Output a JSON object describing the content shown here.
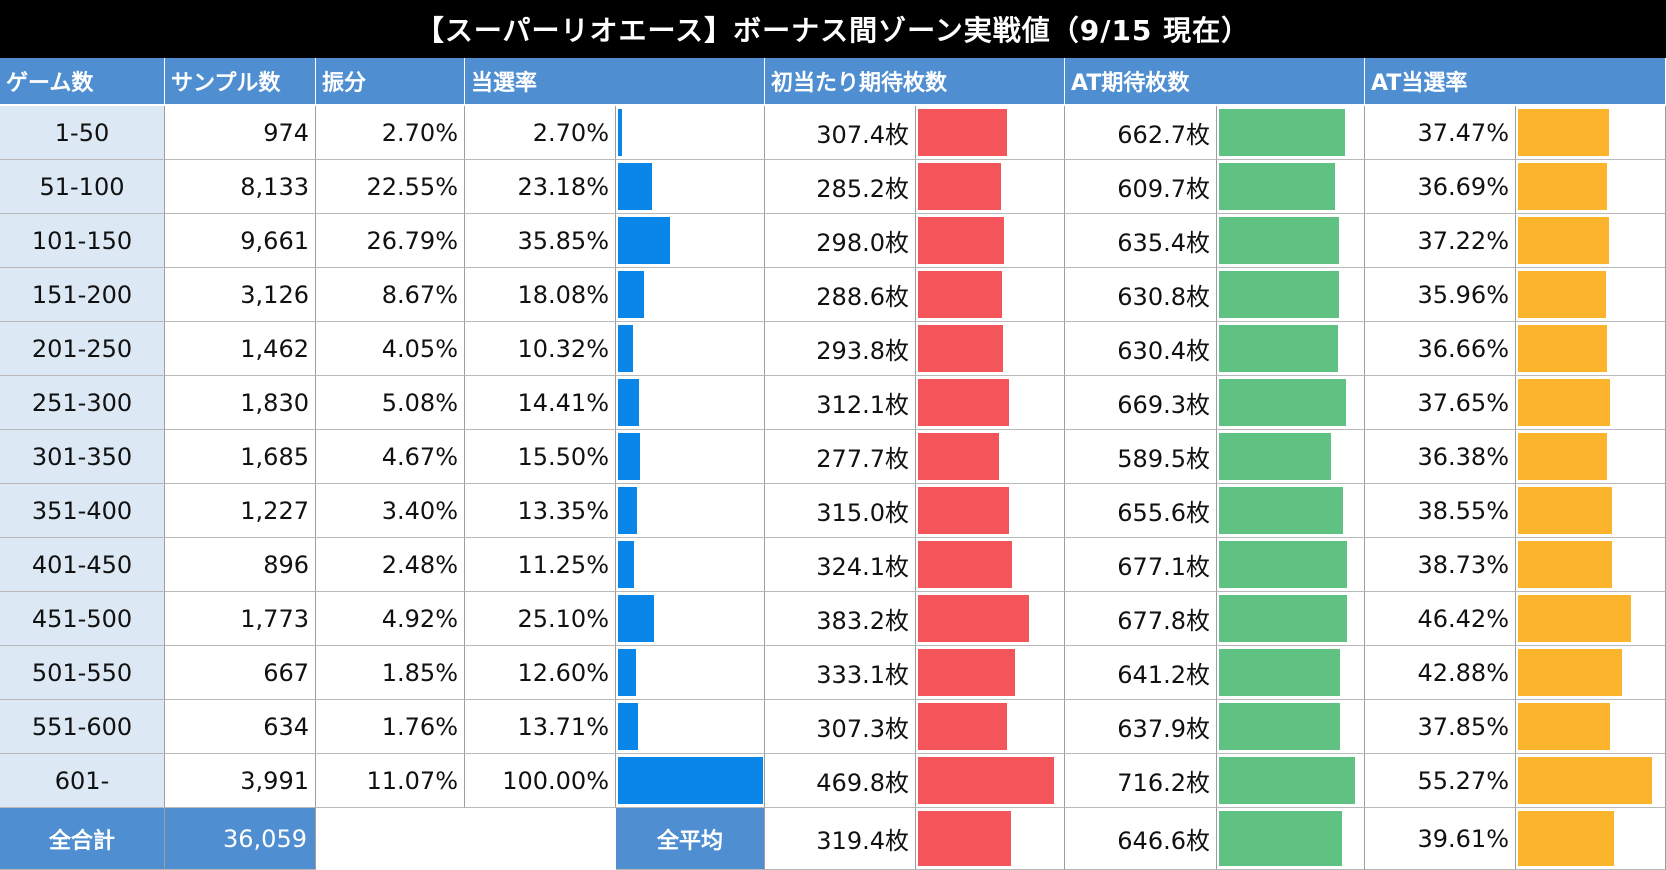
{
  "title": "【スーパーリオエース】ボーナス間ゾーン実戦値（9/15 現在）",
  "chart_data": {
    "type": "table",
    "headers": {
      "zone": "ゲーム数",
      "samples": "サンプル数",
      "share": "振分",
      "rate": "当選率",
      "first_hit": "初当たり期待枚数",
      "at_expect": "AT期待枚数",
      "at_rate": "AT当選率"
    },
    "rows": [
      {
        "zone": "1-50",
        "samples": "974",
        "share": "2.70%",
        "rate": "2.70%",
        "rate_value": 2.7,
        "first_hit": "307.4枚",
        "first_hit_value": 307.4,
        "at_expect": "662.7枚",
        "at_expect_value": 662.7,
        "at_rate": "37.47%",
        "at_rate_value": 37.47
      },
      {
        "zone": "51-100",
        "samples": "8,133",
        "share": "22.55%",
        "rate": "23.18%",
        "rate_value": 23.18,
        "first_hit": "285.2枚",
        "first_hit_value": 285.2,
        "at_expect": "609.7枚",
        "at_expect_value": 609.7,
        "at_rate": "36.69%",
        "at_rate_value": 36.69
      },
      {
        "zone": "101-150",
        "samples": "9,661",
        "share": "26.79%",
        "rate": "35.85%",
        "rate_value": 35.85,
        "first_hit": "298.0枚",
        "first_hit_value": 298.0,
        "at_expect": "635.4枚",
        "at_expect_value": 635.4,
        "at_rate": "37.22%",
        "at_rate_value": 37.22
      },
      {
        "zone": "151-200",
        "samples": "3,126",
        "share": "8.67%",
        "rate": "18.08%",
        "rate_value": 18.08,
        "first_hit": "288.6枚",
        "first_hit_value": 288.6,
        "at_expect": "630.8枚",
        "at_expect_value": 630.8,
        "at_rate": "35.96%",
        "at_rate_value": 35.96
      },
      {
        "zone": "201-250",
        "samples": "1,462",
        "share": "4.05%",
        "rate": "10.32%",
        "rate_value": 10.32,
        "first_hit": "293.8枚",
        "first_hit_value": 293.8,
        "at_expect": "630.4枚",
        "at_expect_value": 630.4,
        "at_rate": "36.66%",
        "at_rate_value": 36.66
      },
      {
        "zone": "251-300",
        "samples": "1,830",
        "share": "5.08%",
        "rate": "14.41%",
        "rate_value": 14.41,
        "first_hit": "312.1枚",
        "first_hit_value": 312.1,
        "at_expect": "669.3枚",
        "at_expect_value": 669.3,
        "at_rate": "37.65%",
        "at_rate_value": 37.65
      },
      {
        "zone": "301-350",
        "samples": "1,685",
        "share": "4.67%",
        "rate": "15.50%",
        "rate_value": 15.5,
        "first_hit": "277.7枚",
        "first_hit_value": 277.7,
        "at_expect": "589.5枚",
        "at_expect_value": 589.5,
        "at_rate": "36.38%",
        "at_rate_value": 36.38
      },
      {
        "zone": "351-400",
        "samples": "1,227",
        "share": "3.40%",
        "rate": "13.35%",
        "rate_value": 13.35,
        "first_hit": "315.0枚",
        "first_hit_value": 315.0,
        "at_expect": "655.6枚",
        "at_expect_value": 655.6,
        "at_rate": "38.55%",
        "at_rate_value": 38.55
      },
      {
        "zone": "401-450",
        "samples": "896",
        "share": "2.48%",
        "rate": "11.25%",
        "rate_value": 11.25,
        "first_hit": "324.1枚",
        "first_hit_value": 324.1,
        "at_expect": "677.1枚",
        "at_expect_value": 677.1,
        "at_rate": "38.73%",
        "at_rate_value": 38.73
      },
      {
        "zone": "451-500",
        "samples": "1,773",
        "share": "4.92%",
        "rate": "25.10%",
        "rate_value": 25.1,
        "first_hit": "383.2枚",
        "first_hit_value": 383.2,
        "at_expect": "677.8枚",
        "at_expect_value": 677.8,
        "at_rate": "46.42%",
        "at_rate_value": 46.42
      },
      {
        "zone": "501-550",
        "samples": "667",
        "share": "1.85%",
        "rate": "12.60%",
        "rate_value": 12.6,
        "first_hit": "333.1枚",
        "first_hit_value": 333.1,
        "at_expect": "641.2枚",
        "at_expect_value": 641.2,
        "at_rate": "42.88%",
        "at_rate_value": 42.88
      },
      {
        "zone": "551-600",
        "samples": "634",
        "share": "1.76%",
        "rate": "13.71%",
        "rate_value": 13.71,
        "first_hit": "307.3枚",
        "first_hit_value": 307.3,
        "at_expect": "637.9枚",
        "at_expect_value": 637.9,
        "at_rate": "37.85%",
        "at_rate_value": 37.85
      },
      {
        "zone": "601-",
        "samples": "3,991",
        "share": "11.07%",
        "rate": "100.00%",
        "rate_value": 100.0,
        "first_hit": "469.8枚",
        "first_hit_value": 469.8,
        "at_expect": "716.2枚",
        "at_expect_value": 716.2,
        "at_rate": "55.27%",
        "at_rate_value": 55.27
      }
    ],
    "footer": {
      "total_label": "全合計",
      "total_samples": "36,059",
      "avg_label": "全平均",
      "first_hit": "319.4枚",
      "first_hit_value": 319.4,
      "at_expect": "646.6枚",
      "at_expect_value": 646.6,
      "at_rate": "39.61%",
      "at_rate_value": 39.61
    },
    "bar_scale_max": {
      "rate": 100,
      "first_hit": 500,
      "at_expect": 760,
      "at_rate": 60
    },
    "colors": {
      "rate": "#0a85e8",
      "first_hit": "#f4555a",
      "at_expect": "#60c282",
      "at_rate": "#fbb42c",
      "header": "#4f8fd1",
      "zone_bg": "#dce9f5"
    }
  }
}
